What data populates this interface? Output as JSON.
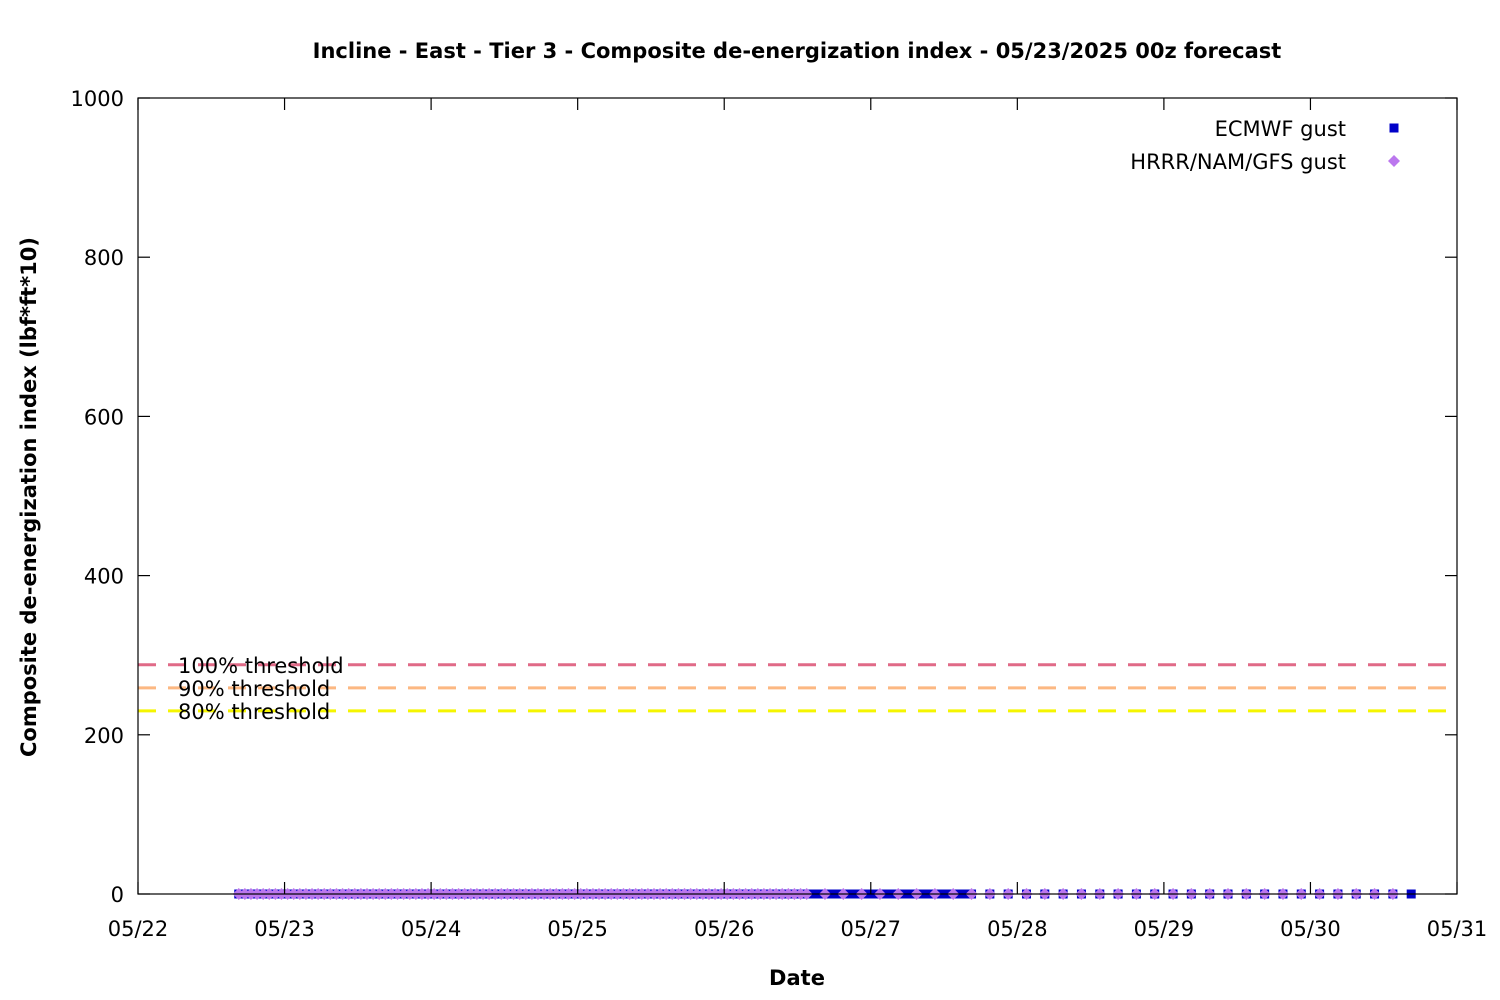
{
  "chart_data": {
    "type": "scatter",
    "title": "Incline - East - Tier 3 - Composite de-energization index - 05/23/2025 00z forecast",
    "xlabel": "Date",
    "ylabel": "Composite de-energization index (lbf*ft*10)",
    "x_ticks": [
      "05/22",
      "05/23",
      "05/24",
      "05/25",
      "05/26",
      "05/27",
      "05/28",
      "05/29",
      "05/30",
      "05/31"
    ],
    "xlim_days": [
      0,
      9
    ],
    "ylim": [
      0,
      1000
    ],
    "y_ticks": [
      0,
      200,
      400,
      600,
      800,
      1000
    ],
    "grid": false,
    "legend_position": "top-right",
    "thresholds": [
      {
        "label": "100% threshold",
        "value": 288,
        "color": "#e06a87"
      },
      {
        "label": "90% threshold",
        "value": 259,
        "color": "#fcb882"
      },
      {
        "label": "80% threshold",
        "value": 230,
        "color": "#f5f500"
      }
    ],
    "series": [
      {
        "name": "ECMWF gust",
        "marker": "square",
        "color": "#0000c8",
        "segments": [
          {
            "start_day": 0.6875,
            "end_day": 5.6875,
            "step_hours": 1,
            "value": 0
          },
          {
            "start_day": 5.8125,
            "end_day": 8.6875,
            "step_hours": 3,
            "value": 0
          }
        ]
      },
      {
        "name": "HRRR/NAM/GFS gust",
        "marker": "diamond",
        "color": "#bb77ee",
        "segments": [
          {
            "start_day": 0.6875,
            "end_day": 4.5625,
            "step_hours": 1,
            "value": 0
          },
          {
            "start_day": 4.6875,
            "end_day": 8.5625,
            "step_hours": 3,
            "value": 0
          }
        ]
      }
    ]
  }
}
